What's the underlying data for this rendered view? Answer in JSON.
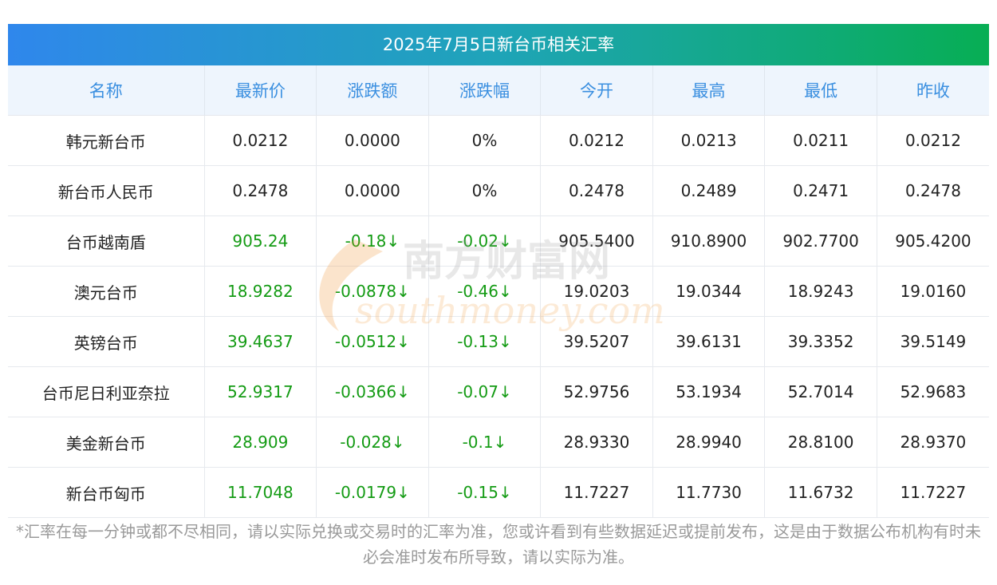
{
  "title": "2025年7月5日新台币相关汇率",
  "columns": [
    "名称",
    "最新价",
    "涨跌额",
    "涨跌幅",
    "今开",
    "最高",
    "最低",
    "昨收"
  ],
  "rows": [
    {
      "name": "韩元新台币",
      "latest": "0.0212",
      "change": "0.0000",
      "pct": "0%",
      "open": "0.0212",
      "high": "0.0213",
      "low": "0.0211",
      "prev": "0.0212",
      "down": false
    },
    {
      "name": "新台币人民币",
      "latest": "0.2478",
      "change": "0.0000",
      "pct": "0%",
      "open": "0.2478",
      "high": "0.2489",
      "low": "0.2471",
      "prev": "0.2478",
      "down": false
    },
    {
      "name": "台币越南盾",
      "latest": "905.24",
      "change": "-0.18↓",
      "pct": "-0.02↓",
      "open": "905.5400",
      "high": "910.8900",
      "low": "902.7700",
      "prev": "905.4200",
      "down": true
    },
    {
      "name": "澳元台币",
      "latest": "18.9282",
      "change": "-0.0878↓",
      "pct": "-0.46↓",
      "open": "19.0203",
      "high": "19.0344",
      "low": "18.9243",
      "prev": "19.0160",
      "down": true
    },
    {
      "name": "英镑台币",
      "latest": "39.4637",
      "change": "-0.0512↓",
      "pct": "-0.13↓",
      "open": "39.5207",
      "high": "39.6131",
      "low": "39.3352",
      "prev": "39.5149",
      "down": true
    },
    {
      "name": "台币尼日利亚奈拉",
      "latest": "52.9317",
      "change": "-0.0366↓",
      "pct": "-0.07↓",
      "open": "52.9756",
      "high": "53.1934",
      "low": "52.7014",
      "prev": "52.9683",
      "down": true
    },
    {
      "name": "美金新台币",
      "latest": "28.909",
      "change": "-0.028↓",
      "pct": "-0.1↓",
      "open": "28.9330",
      "high": "28.9940",
      "low": "28.8100",
      "prev": "28.9370",
      "down": true
    },
    {
      "name": "新台币匈币",
      "latest": "11.7048",
      "change": "-0.0179↓",
      "pct": "-0.15↓",
      "open": "11.7227",
      "high": "11.7730",
      "low": "11.6732",
      "prev": "11.7227",
      "down": true
    }
  ],
  "watermark": {
    "cn": "南方财富网",
    "en": "southmoney.com"
  },
  "footnote": "*汇率在每一分钟或都不尽相同，请以实际兑换或交易时的汇率为准，您或许看到有些数据延迟或提前发布，这是由于数据公布机构有时未必会准时发布所导致，请以实际为准。",
  "colors": {
    "up_neutral": "#222222",
    "down": "#149b14",
    "header_text": "#3a8fe0",
    "header_bg": "#eef5fd",
    "title_grad_start": "#2f87ec",
    "title_grad_end": "#07ae54"
  }
}
